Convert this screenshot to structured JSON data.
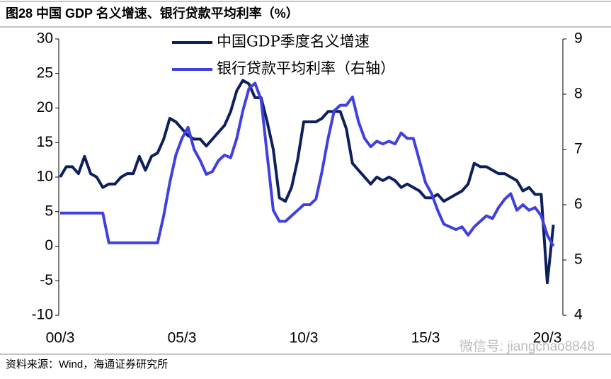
{
  "chart_data": {
    "type": "line",
    "title": "图28 中国 GDP 名义增速、银行贷款平均利率（%）",
    "source": "资料来源：Wind，海通证券研究所",
    "watermark": "微信号: jiangchao8848",
    "categories": [
      "00/3",
      null,
      null,
      null,
      null,
      null,
      null,
      null,
      null,
      null,
      null,
      null,
      null,
      null,
      null,
      null,
      null,
      null,
      null,
      null,
      "05/3",
      null,
      null,
      null,
      null,
      null,
      null,
      null,
      null,
      null,
      null,
      null,
      null,
      null,
      null,
      null,
      null,
      null,
      null,
      null,
      "10/3",
      null,
      null,
      null,
      null,
      null,
      null,
      null,
      null,
      null,
      null,
      null,
      null,
      null,
      null,
      null,
      null,
      null,
      null,
      null,
      "15/3",
      null,
      null,
      null,
      null,
      null,
      null,
      null,
      null,
      null,
      null,
      null,
      null,
      null,
      null,
      null,
      null,
      null,
      null,
      null,
      "20/3",
      null
    ],
    "ylim": [
      -10,
      30
    ],
    "yticks": [
      -10,
      -5,
      0,
      5,
      10,
      15,
      20,
      25,
      30
    ],
    "y2lim": [
      4,
      9
    ],
    "y2ticks": [
      4,
      5,
      6,
      7,
      8,
      9
    ],
    "legend": "upper left",
    "series": [
      {
        "name": "中国GDP季度名义增速",
        "color": "#0d1f5c",
        "values": [
          10,
          11.5,
          11.5,
          10.5,
          13,
          10.5,
          10,
          8.5,
          9,
          9,
          10,
          10.5,
          10.5,
          13,
          11,
          13,
          13.5,
          15.5,
          18.5,
          18,
          17,
          16,
          15.5,
          15.5,
          14.5,
          15.5,
          16.5,
          17.5,
          19.5,
          22.5,
          24,
          23.5,
          21.5,
          21.5,
          18,
          14,
          7,
          6.5,
          8.5,
          12.5,
          18,
          18,
          18,
          18.5,
          19.5,
          19.5,
          19.5,
          17,
          12,
          11,
          10,
          9,
          10,
          9.5,
          10,
          9.5,
          8.5,
          9,
          8.5,
          8,
          7,
          7,
          7.5,
          6.5,
          7,
          7.5,
          8,
          9,
          12,
          11.5,
          11.5,
          11,
          10.5,
          10.5,
          10,
          9.5,
          8,
          8.5,
          7.5,
          7.5,
          -5.3,
          3.1
        ]
      },
      {
        "name": "银行贷款平均利率（右轴）",
        "color": "#4040e0",
        "axis": "y2",
        "values": [
          5.85,
          5.85,
          5.85,
          5.85,
          5.85,
          5.85,
          5.85,
          5.85,
          5.31,
          5.31,
          5.31,
          5.31,
          5.31,
          5.31,
          5.31,
          5.31,
          5.31,
          5.8,
          6.4,
          6.9,
          7.2,
          7.4,
          7.0,
          6.8,
          6.55,
          6.6,
          6.8,
          6.9,
          6.85,
          7.2,
          7.7,
          8.1,
          8.2,
          7.9,
          6.9,
          5.9,
          5.7,
          5.7,
          5.8,
          5.9,
          6.0,
          6.0,
          6.1,
          6.6,
          7.2,
          7.7,
          7.8,
          7.8,
          7.95,
          7.5,
          7.2,
          7.05,
          7.15,
          7.1,
          7.15,
          7.1,
          7.3,
          7.2,
          7.2,
          6.8,
          6.4,
          6.2,
          5.9,
          5.65,
          5.6,
          5.55,
          5.6,
          5.45,
          5.6,
          5.7,
          5.8,
          5.75,
          5.95,
          6.1,
          6.2,
          5.9,
          6.0,
          5.9,
          5.95,
          5.8,
          5.45,
          5.25
        ]
      }
    ]
  }
}
